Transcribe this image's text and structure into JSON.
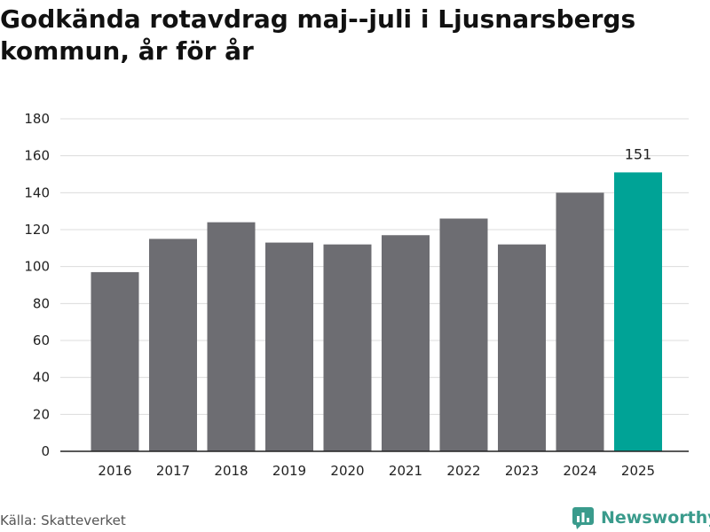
{
  "title": "Godkända rotavdrag maj--juli i Ljusnarsbergs kommun, år för år",
  "source": "Källa: Skatteverket",
  "brand": {
    "name": "Newsworthy",
    "icon": "newsworthy-logo-icon",
    "color": "#3a9b8c"
  },
  "chart_data": {
    "type": "bar",
    "title": "Godkända rotavdrag maj--juli i Ljusnarsbergs kommun, år för år",
    "xlabel": "",
    "ylabel": "",
    "categories": [
      "2016",
      "2017",
      "2018",
      "2019",
      "2020",
      "2021",
      "2022",
      "2023",
      "2024",
      "2025"
    ],
    "values": [
      97,
      115,
      124,
      113,
      112,
      117,
      126,
      112,
      140,
      151
    ],
    "ylim": [
      0,
      180
    ],
    "yticks": [
      0,
      20,
      40,
      60,
      80,
      100,
      120,
      140,
      160,
      180
    ],
    "grid": true,
    "bar_color": "#6d6d72",
    "highlight_color": "#00a396",
    "highlight_category": "2025",
    "data_labels": [
      {
        "category": "2025",
        "text": "151"
      }
    ]
  }
}
